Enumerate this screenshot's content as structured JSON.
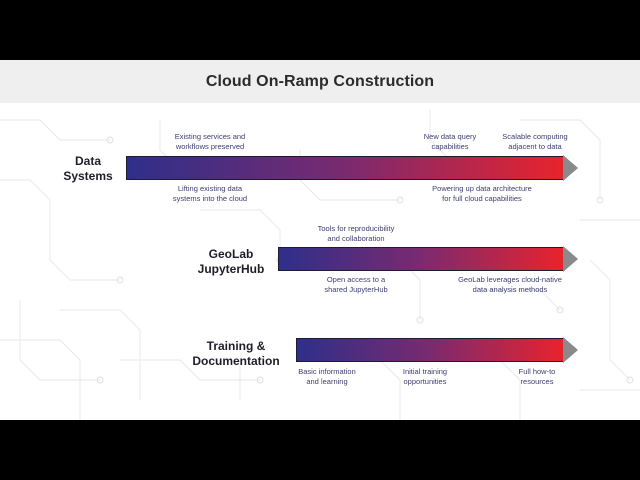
{
  "title": "Cloud On-Ramp Construction",
  "rows": [
    {
      "label_line1": "Data",
      "label_line2": "Systems",
      "above": [
        {
          "line1": "Existing services and",
          "line2": "workflows preserved"
        },
        {
          "line1": "New data query",
          "line2": "capabilities"
        },
        {
          "line1": "Scalable computing",
          "line2": "adjacent to data"
        }
      ],
      "below": [
        {
          "line1": "Lifting existing data",
          "line2": "systems into the cloud"
        },
        {
          "line1": "Powering up data architecture",
          "line2": "for full cloud capabilities"
        }
      ]
    },
    {
      "label_line1": "GeoLab",
      "label_line2": "JupyterHub",
      "above": [
        {
          "line1": "Tools for reproducibility",
          "line2": "and collaboration"
        }
      ],
      "below": [
        {
          "line1": "Open access to a",
          "line2": "shared JupyterHub"
        },
        {
          "line1": "GeoLab leverages cloud-native",
          "line2": "data analysis methods"
        }
      ]
    },
    {
      "label_line1": "Training &",
      "label_line2": "Documentation",
      "above": [],
      "below": [
        {
          "line1": "Basic information",
          "line2": "and learning"
        },
        {
          "line1": "Initial training",
          "line2": "opportunities"
        },
        {
          "line1": "Full how-to",
          "line2": "resources"
        }
      ]
    }
  ],
  "colors": {
    "gradient_start": "#2e2f8a",
    "gradient_mid": "#7a2a6f",
    "gradient_end": "#e8232d",
    "arrowhead": "#8a8a8a",
    "annotation_text": "#3d3d72"
  }
}
